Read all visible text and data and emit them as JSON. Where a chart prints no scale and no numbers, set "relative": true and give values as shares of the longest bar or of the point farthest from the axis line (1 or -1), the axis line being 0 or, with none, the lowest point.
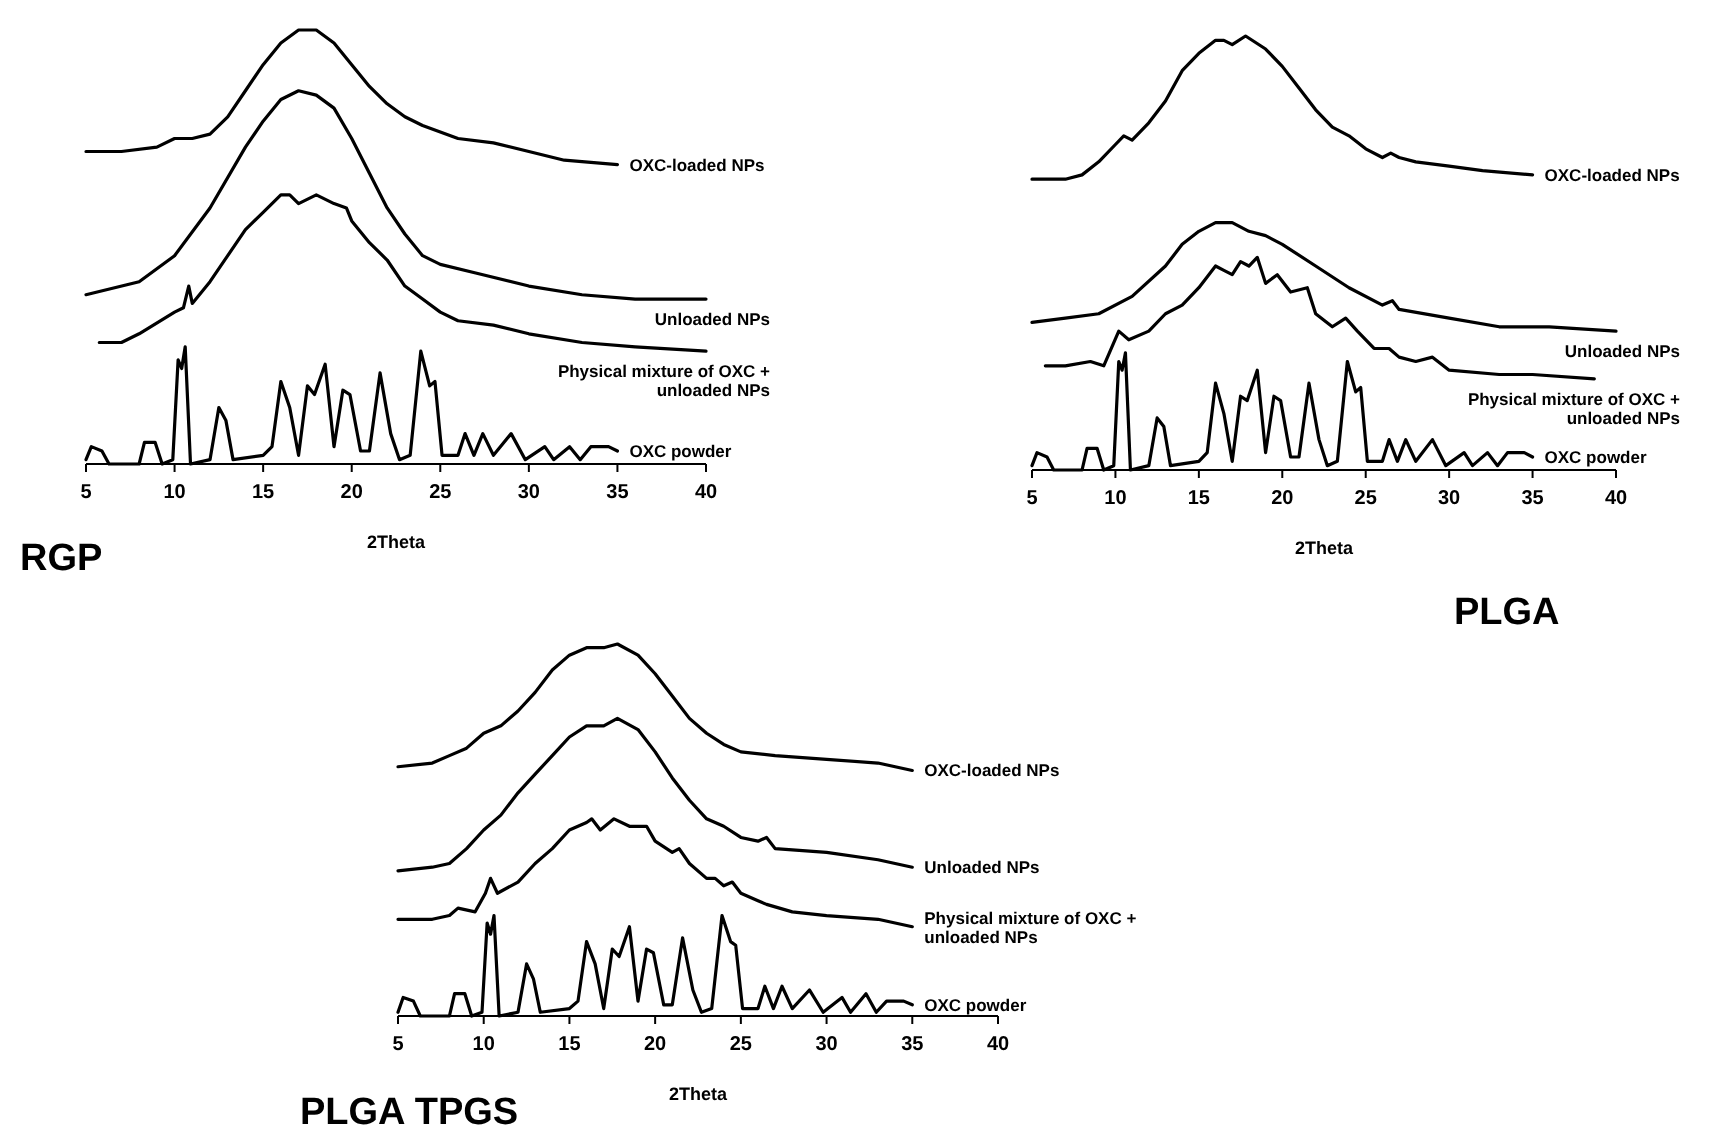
{
  "chart_data": [
    {
      "type": "line",
      "title": "RGP",
      "xlabel": "2Theta",
      "relative": true,
      "xlim": [
        5,
        40
      ],
      "xticks": [
        5,
        10,
        15,
        20,
        25,
        30,
        35,
        40
      ],
      "series": [
        {
          "name": "OXC-loaded NPs",
          "color": "#000000",
          "x": [
            5,
            7,
            9,
            10,
            11,
            12,
            13,
            14,
            15,
            16,
            17,
            18,
            19,
            20,
            21,
            22,
            23,
            24,
            26,
            28,
            30,
            32,
            35
          ],
          "values": [
            0.72,
            0.72,
            0.73,
            0.75,
            0.75,
            0.76,
            0.8,
            0.86,
            0.92,
            0.97,
            1,
            1,
            0.97,
            0.92,
            0.87,
            0.83,
            0.8,
            0.78,
            0.75,
            0.74,
            0.72,
            0.7,
            0.69
          ]
        },
        {
          "name": "Unloaded NPs",
          "color": "#000000",
          "x": [
            5,
            8,
            10,
            12,
            14,
            15,
            16,
            17,
            18,
            19,
            20,
            21,
            22,
            23,
            24,
            25,
            27,
            30,
            33,
            36,
            40
          ],
          "values": [
            0.39,
            0.42,
            0.48,
            0.59,
            0.73,
            0.79,
            0.84,
            0.86,
            0.85,
            0.82,
            0.75,
            0.67,
            0.59,
            0.53,
            0.48,
            0.46,
            0.44,
            0.41,
            0.39,
            0.38,
            0.38
          ]
        },
        {
          "name": "Physical mixture of OXC + unloaded NPs",
          "color": "#000000",
          "x": [
            5.75,
            7,
            8,
            10,
            10.5,
            10.8,
            11,
            12,
            13,
            14,
            15,
            16,
            16.5,
            17,
            18,
            19,
            19.7,
            20,
            21,
            22,
            23,
            24,
            25,
            26,
            28,
            30,
            33,
            36,
            40
          ],
          "values": [
            0.28,
            0.28,
            0.3,
            0.35,
            0.36,
            0.41,
            0.37,
            0.42,
            0.48,
            0.54,
            0.58,
            0.62,
            0.62,
            0.6,
            0.62,
            0.6,
            0.59,
            0.56,
            0.51,
            0.47,
            0.41,
            0.38,
            0.35,
            0.33,
            0.32,
            0.3,
            0.28,
            0.27,
            0.26
          ]
        },
        {
          "name": "OXC powder",
          "color": "#000000",
          "x": [
            5,
            5.3,
            5.9,
            6.3,
            8,
            8.3,
            8.9,
            9.3,
            9.9,
            10.2,
            10.4,
            10.6,
            10.9,
            12,
            12.5,
            12.9,
            13.3,
            15,
            15.5,
            16,
            16.5,
            17,
            17.5,
            17.9,
            18.5,
            19,
            19.5,
            19.9,
            20.5,
            21,
            21.6,
            22.2,
            22.7,
            23.3,
            23.9,
            24.4,
            24.7,
            25.1,
            26,
            26.4,
            26.9,
            27.4,
            28,
            29,
            29.8,
            30.9,
            31.4,
            32.3,
            32.9,
            33.5,
            34.5,
            35
          ],
          "values": [
            0.01,
            0.04,
            0.03,
            0,
            0,
            0.05,
            0.05,
            0,
            0.01,
            0.24,
            0.22,
            0.27,
            0,
            0.01,
            0.13,
            0.1,
            0.01,
            0.02,
            0.04,
            0.19,
            0.13,
            0.02,
            0.18,
            0.16,
            0.23,
            0.04,
            0.17,
            0.16,
            0.03,
            0.03,
            0.21,
            0.07,
            0.01,
            0.02,
            0.26,
            0.18,
            0.19,
            0.02,
            0.02,
            0.07,
            0.02,
            0.07,
            0.02,
            0.07,
            0.01,
            0.04,
            0.01,
            0.04,
            0.01,
            0.04,
            0.04,
            0.03
          ]
        }
      ]
    },
    {
      "type": "line",
      "title": "PLGA",
      "xlabel": "2Theta",
      "relative": true,
      "xlim": [
        5,
        40
      ],
      "xticks": [
        5,
        10,
        15,
        20,
        25,
        30,
        35,
        40
      ],
      "series": [
        {
          "name": "OXC-loaded NPs",
          "color": "#000000",
          "x": [
            5,
            7,
            8,
            9,
            10,
            10.5,
            11,
            12,
            13,
            14,
            15,
            16,
            16.5,
            17,
            17.8,
            19,
            20,
            21,
            22,
            23,
            24,
            25,
            26,
            26.5,
            27,
            28,
            30,
            32,
            35
          ],
          "values": [
            0.67,
            0.67,
            0.68,
            0.71,
            0.75,
            0.77,
            0.76,
            0.8,
            0.85,
            0.92,
            0.96,
            0.99,
            0.99,
            0.98,
            1,
            0.97,
            0.93,
            0.88,
            0.83,
            0.79,
            0.77,
            0.74,
            0.72,
            0.73,
            0.72,
            0.71,
            0.7,
            0.69,
            0.68
          ]
        },
        {
          "name": "Unloaded NPs",
          "color": "#000000",
          "x": [
            5,
            7,
            9,
            11,
            13,
            14,
            15,
            16,
            17,
            18,
            19,
            20,
            22,
            24,
            26,
            26.6,
            27,
            30,
            33,
            36,
            40
          ],
          "values": [
            0.34,
            0.35,
            0.36,
            0.4,
            0.47,
            0.52,
            0.55,
            0.57,
            0.57,
            0.55,
            0.54,
            0.52,
            0.47,
            0.42,
            0.38,
            0.39,
            0.37,
            0.35,
            0.33,
            0.33,
            0.32
          ]
        },
        {
          "name": "Physical mixture of OXC + unloaded NPs",
          "color": "#000000",
          "x": [
            5.8,
            7,
            8.5,
            9.3,
            10.2,
            10.8,
            12,
            13,
            14,
            15,
            16,
            16.5,
            17,
            17.5,
            18,
            18.5,
            19,
            19.7,
            20.5,
            21.5,
            22,
            23,
            23.8,
            24.5,
            25.5,
            26.4,
            27,
            28,
            29,
            30,
            33,
            35,
            38.7
          ],
          "values": [
            0.24,
            0.24,
            0.25,
            0.24,
            0.32,
            0.3,
            0.32,
            0.36,
            0.38,
            0.42,
            0.47,
            0.46,
            0.45,
            0.48,
            0.47,
            0.49,
            0.43,
            0.45,
            0.41,
            0.42,
            0.36,
            0.33,
            0.35,
            0.32,
            0.28,
            0.28,
            0.26,
            0.25,
            0.26,
            0.23,
            0.22,
            0.22,
            0.21
          ]
        },
        {
          "name": "OXC powder",
          "color": "#000000",
          "x": [
            5,
            5.3,
            5.9,
            6.3,
            8,
            8.3,
            8.9,
            9.3,
            9.9,
            10.2,
            10.4,
            10.6,
            10.9,
            12,
            12.5,
            12.9,
            13.3,
            15,
            15.5,
            16,
            16.5,
            17,
            17.5,
            17.9,
            18.5,
            19,
            19.5,
            19.9,
            20.5,
            21,
            21.6,
            22.2,
            22.7,
            23.3,
            23.9,
            24.4,
            24.7,
            25.1,
            26,
            26.4,
            26.9,
            27.4,
            28,
            29,
            29.8,
            30.9,
            31.4,
            32.3,
            32.9,
            33.5,
            34.5,
            35
          ],
          "values": [
            0.01,
            0.04,
            0.03,
            0,
            0,
            0.05,
            0.05,
            0,
            0.01,
            0.25,
            0.23,
            0.27,
            0,
            0.01,
            0.12,
            0.1,
            0.01,
            0.02,
            0.04,
            0.2,
            0.13,
            0.02,
            0.17,
            0.16,
            0.23,
            0.04,
            0.17,
            0.16,
            0.03,
            0.03,
            0.2,
            0.07,
            0.01,
            0.02,
            0.25,
            0.18,
            0.19,
            0.02,
            0.02,
            0.07,
            0.02,
            0.07,
            0.02,
            0.07,
            0.01,
            0.04,
            0.01,
            0.04,
            0.01,
            0.04,
            0.04,
            0.03
          ]
        }
      ]
    },
    {
      "type": "line",
      "title": "PLGA TPGS",
      "xlabel": "2Theta",
      "relative": true,
      "xlim": [
        5,
        40
      ],
      "xticks": [
        5,
        10,
        15,
        20,
        25,
        30,
        35,
        40
      ],
      "series": [
        {
          "name": "OXC-loaded NPs",
          "color": "#000000",
          "x": [
            5,
            7,
            8,
            9,
            10,
            11,
            12,
            13,
            14,
            15,
            16,
            17,
            17.8,
            19,
            20,
            21,
            22,
            23,
            24,
            25,
            27,
            30,
            33,
            35
          ],
          "values": [
            0.67,
            0.68,
            0.7,
            0.72,
            0.76,
            0.78,
            0.82,
            0.87,
            0.93,
            0.97,
            0.99,
            0.99,
            1,
            0.97,
            0.92,
            0.86,
            0.8,
            0.76,
            0.73,
            0.71,
            0.7,
            0.69,
            0.68,
            0.66
          ]
        },
        {
          "name": "Unloaded NPs",
          "color": "#000000",
          "x": [
            5,
            7,
            8,
            9,
            10,
            11,
            12,
            13,
            14,
            15,
            16,
            17,
            17.8,
            19,
            20,
            21,
            22,
            23,
            24,
            25,
            26,
            26.5,
            27,
            30,
            33,
            35
          ],
          "values": [
            0.39,
            0.4,
            0.41,
            0.45,
            0.5,
            0.54,
            0.6,
            0.65,
            0.7,
            0.75,
            0.78,
            0.78,
            0.8,
            0.77,
            0.71,
            0.64,
            0.58,
            0.53,
            0.51,
            0.48,
            0.47,
            0.48,
            0.45,
            0.44,
            0.42,
            0.4
          ]
        },
        {
          "name": "Physical mixture of OXC + unloaded NPs",
          "color": "#000000",
          "x": [
            5,
            7,
            8,
            8.5,
            9.5,
            10.1,
            10.4,
            10.8,
            12,
            13,
            14,
            15,
            16,
            16.3,
            16.8,
            17.6,
            18.5,
            19.5,
            20,
            21,
            21.4,
            22,
            23,
            23.5,
            24,
            24.5,
            25,
            26,
            26.5,
            28,
            30,
            33,
            35
          ],
          "values": [
            0.26,
            0.26,
            0.27,
            0.29,
            0.28,
            0.33,
            0.37,
            0.33,
            0.36,
            0.41,
            0.45,
            0.5,
            0.52,
            0.53,
            0.5,
            0.53,
            0.51,
            0.51,
            0.47,
            0.44,
            0.45,
            0.41,
            0.37,
            0.37,
            0.35,
            0.36,
            0.33,
            0.31,
            0.3,
            0.28,
            0.27,
            0.26,
            0.24
          ]
        },
        {
          "name": "OXC powder",
          "color": "#000000",
          "x": [
            5,
            5.3,
            5.9,
            6.3,
            8,
            8.3,
            8.9,
            9.3,
            9.9,
            10.2,
            10.4,
            10.6,
            10.9,
            12,
            12.5,
            12.9,
            13.3,
            15,
            15.5,
            16,
            16.5,
            17,
            17.5,
            17.9,
            18.5,
            19,
            19.5,
            19.9,
            20.5,
            21,
            21.6,
            22.2,
            22.7,
            23.3,
            23.9,
            24.4,
            24.7,
            25.1,
            26,
            26.4,
            26.9,
            27.4,
            28,
            29,
            29.8,
            30.9,
            31.4,
            32.3,
            32.9,
            33.5,
            34.5,
            35
          ],
          "values": [
            0.01,
            0.05,
            0.04,
            0,
            0,
            0.06,
            0.06,
            0,
            0.01,
            0.25,
            0.22,
            0.27,
            0,
            0.01,
            0.14,
            0.1,
            0.01,
            0.02,
            0.04,
            0.2,
            0.14,
            0.02,
            0.18,
            0.16,
            0.24,
            0.04,
            0.18,
            0.17,
            0.03,
            0.03,
            0.21,
            0.07,
            0.01,
            0.02,
            0.27,
            0.2,
            0.19,
            0.02,
            0.02,
            0.08,
            0.02,
            0.08,
            0.02,
            0.07,
            0.01,
            0.05,
            0.01,
            0.06,
            0.01,
            0.04,
            0.04,
            0.03
          ]
        }
      ]
    }
  ]
}
